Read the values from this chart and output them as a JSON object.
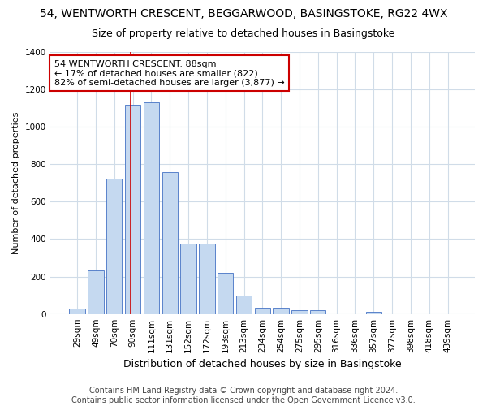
{
  "title1": "54, WENTWORTH CRESCENT, BEGGARWOOD, BASINGSTOKE, RG22 4WX",
  "title2": "Size of property relative to detached houses in Basingstoke",
  "xlabel": "Distribution of detached houses by size in Basingstoke",
  "ylabel": "Number of detached properties",
  "categories": [
    "29sqm",
    "49sqm",
    "70sqm",
    "90sqm",
    "111sqm",
    "131sqm",
    "152sqm",
    "172sqm",
    "193sqm",
    "213sqm",
    "234sqm",
    "254sqm",
    "275sqm",
    "295sqm",
    "316sqm",
    "336sqm",
    "357sqm",
    "377sqm",
    "398sqm",
    "418sqm",
    "439sqm"
  ],
  "values": [
    30,
    235,
    725,
    1120,
    1130,
    760,
    375,
    375,
    220,
    100,
    35,
    35,
    20,
    20,
    0,
    0,
    10,
    0,
    0,
    0,
    0
  ],
  "bar_color": "#c5d9f0",
  "bar_edge_color": "#4472c4",
  "vline_color": "#cc0000",
  "vline_pos": 2.9,
  "annotation_line1": "54 WENTWORTH CRESCENT: 88sqm",
  "annotation_line2": "← 17% of detached houses are smaller (822)",
  "annotation_line3": "82% of semi-detached houses are larger (3,877) →",
  "annotation_box_facecolor": "#ffffff",
  "annotation_box_edgecolor": "#cc0000",
  "ylim": [
    0,
    1400
  ],
  "yticks": [
    0,
    200,
    400,
    600,
    800,
    1000,
    1200,
    1400
  ],
  "footer1": "Contains HM Land Registry data © Crown copyright and database right 2024.",
  "footer2": "Contains public sector information licensed under the Open Government Licence v3.0.",
  "fig_facecolor": "#ffffff",
  "plot_facecolor": "#ffffff",
  "grid_color": "#d0dce8",
  "title1_fontsize": 10,
  "title2_fontsize": 9,
  "xlabel_fontsize": 9,
  "ylabel_fontsize": 8,
  "tick_fontsize": 7.5,
  "footer_fontsize": 7,
  "annot_fontsize": 8
}
